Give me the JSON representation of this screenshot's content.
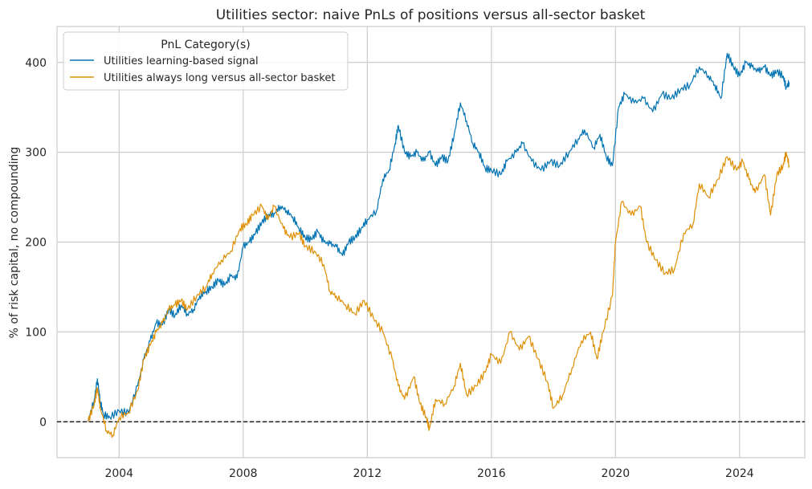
{
  "chart_data": {
    "type": "line",
    "title": "Utilities sector: naive PnLs of positions versus all-sector basket",
    "xlabel": "",
    "ylabel": "% of risk capital, no compounding",
    "xlim": [
      2002.0,
      2026.1
    ],
    "ylim": [
      -40,
      440
    ],
    "x_ticks": [
      2004,
      2008,
      2012,
      2016,
      2020,
      2024
    ],
    "x_tick_labels": [
      "2004",
      "2008",
      "2012",
      "2016",
      "2020",
      "2024"
    ],
    "y_ticks": [
      0,
      100,
      200,
      300,
      400
    ],
    "y_tick_labels": [
      "0",
      "100",
      "200",
      "300",
      "400"
    ],
    "grid": true,
    "zero_line": {
      "y": 0,
      "style": "dashed",
      "color": "#000000"
    },
    "legend": {
      "title": "PnL Category(s)",
      "placement": "top-left"
    },
    "series": [
      {
        "name": "Utilities learning-based signal",
        "color": "#0173b2",
        "points": [
          [
            2003.0,
            0
          ],
          [
            2003.2,
            25
          ],
          [
            2003.3,
            48
          ],
          [
            2003.4,
            22
          ],
          [
            2003.5,
            8
          ],
          [
            2003.7,
            5
          ],
          [
            2004.0,
            12
          ],
          [
            2004.3,
            10
          ],
          [
            2004.6,
            40
          ],
          [
            2004.8,
            70
          ],
          [
            2005.0,
            90
          ],
          [
            2005.2,
            110
          ],
          [
            2005.4,
            108
          ],
          [
            2005.6,
            125
          ],
          [
            2005.8,
            118
          ],
          [
            2006.0,
            130
          ],
          [
            2006.2,
            120
          ],
          [
            2006.4,
            125
          ],
          [
            2006.6,
            140
          ],
          [
            2006.8,
            145
          ],
          [
            2007.0,
            150
          ],
          [
            2007.2,
            158
          ],
          [
            2007.4,
            152
          ],
          [
            2007.6,
            162
          ],
          [
            2007.8,
            160
          ],
          [
            2008.0,
            195
          ],
          [
            2008.2,
            200
          ],
          [
            2008.4,
            210
          ],
          [
            2008.6,
            222
          ],
          [
            2008.8,
            230
          ],
          [
            2009.0,
            232
          ],
          [
            2009.2,
            240
          ],
          [
            2009.4,
            235
          ],
          [
            2009.6,
            228
          ],
          [
            2009.8,
            215
          ],
          [
            2010.0,
            205
          ],
          [
            2010.2,
            203
          ],
          [
            2010.4,
            212
          ],
          [
            2010.6,
            200
          ],
          [
            2010.8,
            198
          ],
          [
            2011.0,
            195
          ],
          [
            2011.2,
            185
          ],
          [
            2011.4,
            200
          ],
          [
            2011.6,
            205
          ],
          [
            2011.8,
            215
          ],
          [
            2012.0,
            225
          ],
          [
            2012.3,
            235
          ],
          [
            2012.5,
            270
          ],
          [
            2012.7,
            280
          ],
          [
            2012.9,
            310
          ],
          [
            2013.0,
            330
          ],
          [
            2013.2,
            300
          ],
          [
            2013.4,
            295
          ],
          [
            2013.6,
            300
          ],
          [
            2013.8,
            290
          ],
          [
            2014.0,
            300
          ],
          [
            2014.2,
            285
          ],
          [
            2014.4,
            295
          ],
          [
            2014.6,
            290
          ],
          [
            2014.8,
            320
          ],
          [
            2015.0,
            355
          ],
          [
            2015.2,
            335
          ],
          [
            2015.4,
            310
          ],
          [
            2015.6,
            300
          ],
          [
            2015.8,
            282
          ],
          [
            2016.0,
            280
          ],
          [
            2016.3,
            275
          ],
          [
            2016.5,
            290
          ],
          [
            2016.8,
            300
          ],
          [
            2017.0,
            310
          ],
          [
            2017.3,
            290
          ],
          [
            2017.6,
            280
          ],
          [
            2017.9,
            290
          ],
          [
            2018.2,
            285
          ],
          [
            2018.5,
            300
          ],
          [
            2018.8,
            315
          ],
          [
            2019.0,
            325
          ],
          [
            2019.3,
            305
          ],
          [
            2019.5,
            320
          ],
          [
            2019.7,
            295
          ],
          [
            2019.9,
            285
          ],
          [
            2020.1,
            350
          ],
          [
            2020.3,
            365
          ],
          [
            2020.6,
            355
          ],
          [
            2020.9,
            360
          ],
          [
            2021.2,
            345
          ],
          [
            2021.5,
            365
          ],
          [
            2021.8,
            360
          ],
          [
            2022.1,
            370
          ],
          [
            2022.4,
            375
          ],
          [
            2022.7,
            395
          ],
          [
            2023.0,
            385
          ],
          [
            2023.2,
            375
          ],
          [
            2023.4,
            360
          ],
          [
            2023.6,
            410
          ],
          [
            2023.8,
            395
          ],
          [
            2024.0,
            385
          ],
          [
            2024.2,
            400
          ],
          [
            2024.4,
            395
          ],
          [
            2024.6,
            390
          ],
          [
            2024.8,
            395
          ],
          [
            2025.0,
            385
          ],
          [
            2025.2,
            390
          ],
          [
            2025.4,
            385
          ],
          [
            2025.5,
            372
          ],
          [
            2025.6,
            378
          ]
        ]
      },
      {
        "name": "Utilities always long versus all-sector basket",
        "color": "#de8f05",
        "points": [
          [
            2003.0,
            0
          ],
          [
            2003.2,
            20
          ],
          [
            2003.3,
            38
          ],
          [
            2003.4,
            15
          ],
          [
            2003.6,
            -10
          ],
          [
            2003.8,
            -15
          ],
          [
            2004.0,
            5
          ],
          [
            2004.3,
            10
          ],
          [
            2004.6,
            35
          ],
          [
            2004.8,
            70
          ],
          [
            2005.0,
            85
          ],
          [
            2005.2,
            100
          ],
          [
            2005.4,
            110
          ],
          [
            2005.6,
            125
          ],
          [
            2005.8,
            130
          ],
          [
            2006.0,
            135
          ],
          [
            2006.2,
            125
          ],
          [
            2006.5,
            140
          ],
          [
            2006.8,
            150
          ],
          [
            2007.0,
            165
          ],
          [
            2007.3,
            180
          ],
          [
            2007.6,
            190
          ],
          [
            2007.9,
            215
          ],
          [
            2008.1,
            220
          ],
          [
            2008.3,
            230
          ],
          [
            2008.6,
            240
          ],
          [
            2008.8,
            225
          ],
          [
            2009.0,
            240
          ],
          [
            2009.3,
            215
          ],
          [
            2009.5,
            205
          ],
          [
            2009.8,
            210
          ],
          [
            2010.0,
            195
          ],
          [
            2010.3,
            190
          ],
          [
            2010.6,
            175
          ],
          [
            2010.8,
            145
          ],
          [
            2011.0,
            140
          ],
          [
            2011.3,
            130
          ],
          [
            2011.6,
            120
          ],
          [
            2011.9,
            135
          ],
          [
            2012.2,
            115
          ],
          [
            2012.5,
            100
          ],
          [
            2012.8,
            70
          ],
          [
            2013.0,
            40
          ],
          [
            2013.2,
            25
          ],
          [
            2013.5,
            50
          ],
          [
            2013.7,
            20
          ],
          [
            2013.9,
            5
          ],
          [
            2014.0,
            -8
          ],
          [
            2014.2,
            25
          ],
          [
            2014.5,
            20
          ],
          [
            2014.8,
            40
          ],
          [
            2015.0,
            65
          ],
          [
            2015.2,
            30
          ],
          [
            2015.5,
            40
          ],
          [
            2015.8,
            55
          ],
          [
            2016.0,
            75
          ],
          [
            2016.3,
            65
          ],
          [
            2016.6,
            100
          ],
          [
            2016.9,
            80
          ],
          [
            2017.2,
            95
          ],
          [
            2017.5,
            70
          ],
          [
            2017.8,
            45
          ],
          [
            2018.0,
            15
          ],
          [
            2018.3,
            30
          ],
          [
            2018.6,
            60
          ],
          [
            2018.9,
            90
          ],
          [
            2019.2,
            100
          ],
          [
            2019.4,
            70
          ],
          [
            2019.6,
            100
          ],
          [
            2019.9,
            140
          ],
          [
            2020.0,
            200
          ],
          [
            2020.2,
            245
          ],
          [
            2020.5,
            230
          ],
          [
            2020.8,
            240
          ],
          [
            2021.0,
            200
          ],
          [
            2021.3,
            180
          ],
          [
            2021.6,
            165
          ],
          [
            2021.9,
            170
          ],
          [
            2022.2,
            210
          ],
          [
            2022.5,
            220
          ],
          [
            2022.7,
            265
          ],
          [
            2023.0,
            250
          ],
          [
            2023.3,
            270
          ],
          [
            2023.6,
            295
          ],
          [
            2023.9,
            280
          ],
          [
            2024.1,
            290
          ],
          [
            2024.3,
            270
          ],
          [
            2024.5,
            255
          ],
          [
            2024.8,
            275
          ],
          [
            2025.0,
            230
          ],
          [
            2025.2,
            275
          ],
          [
            2025.4,
            285
          ],
          [
            2025.5,
            300
          ],
          [
            2025.6,
            285
          ]
        ]
      }
    ]
  }
}
